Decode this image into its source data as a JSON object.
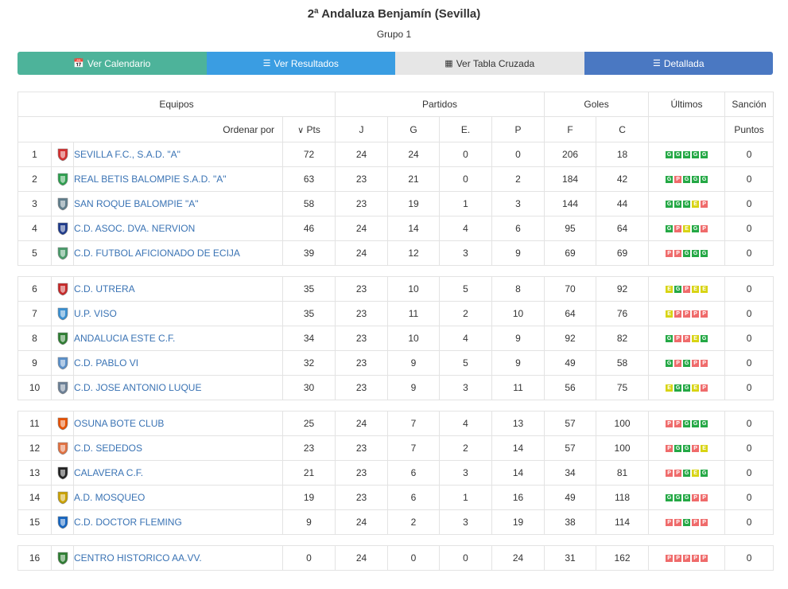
{
  "header": {
    "title": "2ª Andaluza Benjamín (Sevilla)",
    "subtitle": "Grupo 1"
  },
  "buttons": [
    {
      "label": "Ver Calendario",
      "icon": "calendar-icon",
      "color": "#4db39a"
    },
    {
      "label": "Ver Resultados",
      "icon": "list-icon",
      "color": "#3a9de2"
    },
    {
      "label": "Ver Tabla Cruzada",
      "icon": "table-icon",
      "color": "#e6e6e6"
    },
    {
      "label": "Detallada",
      "icon": "detail-list-icon",
      "color": "#4a78c2"
    }
  ],
  "table": {
    "groups": {
      "equipos": "Equipos",
      "partidos": "Partidos",
      "goles": "Goles",
      "ultimos": "Últimos",
      "sancion": "Sanción"
    },
    "columns": {
      "ordenar": "Ordenar por",
      "pts": "Pts",
      "j": "J",
      "g": "G",
      "e": "E.",
      "p": "P",
      "f": "F",
      "c": "C",
      "puntos": "Puntos"
    },
    "sort_icon": "chevron-down-icon",
    "result_colors": {
      "G": "#24a845",
      "P": "#ef6b6b",
      "E": "#d8d414"
    },
    "rows": [
      {
        "pos": "1",
        "team": "SEVILLA F.C., S.A.D. \"A\"",
        "pts": "72",
        "j": "24",
        "g": "24",
        "e": "0",
        "p": "0",
        "f": "206",
        "c": "18",
        "last": [
          "G",
          "G",
          "G",
          "G",
          "G"
        ],
        "sancion": "0",
        "shield_color": "#d32f2f",
        "group_end": false
      },
      {
        "pos": "2",
        "team": "REAL BETIS BALOMPIE S.A.D. \"A\"",
        "pts": "63",
        "j": "23",
        "g": "21",
        "e": "0",
        "p": "2",
        "f": "184",
        "c": "42",
        "last": [
          "G",
          "P",
          "G",
          "G",
          "G"
        ],
        "sancion": "0",
        "shield_color": "#2e9e4f",
        "group_end": false
      },
      {
        "pos": "3",
        "team": "SAN ROQUE BALOMPIE \"A\"",
        "pts": "58",
        "j": "23",
        "g": "19",
        "e": "1",
        "p": "3",
        "f": "144",
        "c": "44",
        "last": [
          "G",
          "G",
          "G",
          "E",
          "P"
        ],
        "sancion": "0",
        "shield_color": "#607d8b",
        "group_end": false
      },
      {
        "pos": "4",
        "team": "C.D. ASOC. DVA. NERVION",
        "pts": "46",
        "j": "24",
        "g": "14",
        "e": "4",
        "p": "6",
        "f": "95",
        "c": "64",
        "last": [
          "G",
          "P",
          "E",
          "G",
          "P"
        ],
        "sancion": "0",
        "shield_color": "#1e3a8a",
        "group_end": false
      },
      {
        "pos": "5",
        "team": "C.D. FUTBOL AFICIONADO DE ECIJA",
        "pts": "39",
        "j": "24",
        "g": "12",
        "e": "3",
        "p": "9",
        "f": "69",
        "c": "69",
        "last": [
          "P",
          "P",
          "G",
          "G",
          "G"
        ],
        "sancion": "0",
        "shield_color": "#4a9a6a",
        "group_end": true
      },
      {
        "pos": "6",
        "team": "C.D. UTRERA",
        "pts": "35",
        "j": "23",
        "g": "10",
        "e": "5",
        "p": "8",
        "f": "70",
        "c": "92",
        "last": [
          "E",
          "G",
          "P",
          "E",
          "E"
        ],
        "sancion": "0",
        "shield_color": "#c62828",
        "group_end": false
      },
      {
        "pos": "7",
        "team": "U.P. VISO",
        "pts": "35",
        "j": "23",
        "g": "11",
        "e": "2",
        "p": "10",
        "f": "64",
        "c": "76",
        "last": [
          "E",
          "P",
          "P",
          "P",
          "P"
        ],
        "sancion": "0",
        "shield_color": "#3a8fd0",
        "group_end": false
      },
      {
        "pos": "8",
        "team": "ANDALUCIA ESTE C.F.",
        "pts": "34",
        "j": "23",
        "g": "10",
        "e": "4",
        "p": "9",
        "f": "92",
        "c": "82",
        "last": [
          "G",
          "P",
          "P",
          "E",
          "G"
        ],
        "sancion": "0",
        "shield_color": "#2e7d32",
        "group_end": false
      },
      {
        "pos": "9",
        "team": "C.D. PABLO VI",
        "pts": "32",
        "j": "23",
        "g": "9",
        "e": "5",
        "p": "9",
        "f": "49",
        "c": "58",
        "last": [
          "G",
          "P",
          "G",
          "P",
          "P"
        ],
        "sancion": "0",
        "shield_color": "#5a8fc8",
        "group_end": false
      },
      {
        "pos": "10",
        "team": "C.D. JOSE ANTONIO LUQUE",
        "pts": "30",
        "j": "23",
        "g": "9",
        "e": "3",
        "p": "11",
        "f": "56",
        "c": "75",
        "last": [
          "E",
          "G",
          "G",
          "E",
          "P"
        ],
        "sancion": "0",
        "shield_color": "#6b7f95",
        "group_end": true
      },
      {
        "pos": "11",
        "team": "OSUNA BOTE CLUB",
        "pts": "25",
        "j": "24",
        "g": "7",
        "e": "4",
        "p": "13",
        "f": "57",
        "c": "100",
        "last": [
          "P",
          "P",
          "G",
          "G",
          "G"
        ],
        "sancion": "0",
        "shield_color": "#e65100",
        "group_end": false
      },
      {
        "pos": "12",
        "team": "C.D. SEDEDOS",
        "pts": "23",
        "j": "23",
        "g": "7",
        "e": "2",
        "p": "14",
        "f": "57",
        "c": "100",
        "last": [
          "P",
          "G",
          "G",
          "P",
          "E"
        ],
        "sancion": "0",
        "shield_color": "#e07040",
        "group_end": false
      },
      {
        "pos": "13",
        "team": "CALAVERA C.F.",
        "pts": "21",
        "j": "23",
        "g": "6",
        "e": "3",
        "p": "14",
        "f": "34",
        "c": "81",
        "last": [
          "P",
          "P",
          "G",
          "E",
          "G"
        ],
        "sancion": "0",
        "shield_color": "#222222",
        "group_end": false
      },
      {
        "pos": "14",
        "team": "A.D. MOSQUEO",
        "pts": "19",
        "j": "23",
        "g": "6",
        "e": "1",
        "p": "16",
        "f": "49",
        "c": "118",
        "last": [
          "G",
          "G",
          "G",
          "P",
          "P"
        ],
        "sancion": "0",
        "shield_color": "#c9a100",
        "group_end": false
      },
      {
        "pos": "15",
        "team": "C.D. DOCTOR FLEMING",
        "pts": "9",
        "j": "24",
        "g": "2",
        "e": "3",
        "p": "19",
        "f": "38",
        "c": "114",
        "last": [
          "P",
          "P",
          "G",
          "P",
          "P"
        ],
        "sancion": "0",
        "shield_color": "#1565c0",
        "group_end": true
      },
      {
        "pos": "16",
        "team": "CENTRO HISTORICO AA.VV.",
        "pts": "0",
        "j": "24",
        "g": "0",
        "e": "0",
        "p": "24",
        "f": "31",
        "c": "162",
        "last": [
          "P",
          "P",
          "P",
          "P",
          "P"
        ],
        "sancion": "0",
        "shield_color": "#2e7d32",
        "group_end": false
      }
    ]
  }
}
